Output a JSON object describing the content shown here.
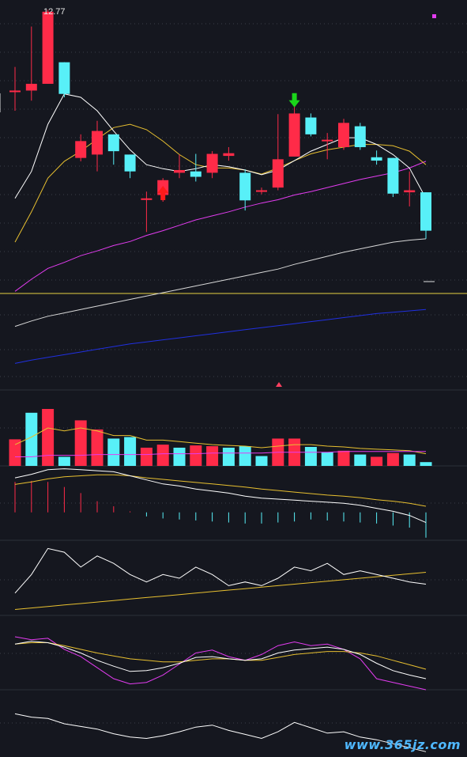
{
  "header": {
    "price_label": "12.77"
  },
  "watermark": {
    "text": "www.365jz.com"
  },
  "colors": {
    "background": "#15171f",
    "up": "#ff2b48",
    "down": "#58f0f8",
    "ma_white": "#ffffff",
    "ma_yellow": "#e8c030",
    "ma_magenta": "#e33cf0",
    "ma_grey": "#d8d8d8",
    "ma_blue": "#2030e0",
    "divider_yellow": "#e8d040",
    "grid": "#3a3f4a",
    "signal_up": "#ff1a1a",
    "signal_down": "#1ad61a"
  },
  "chart_data": [
    {
      "type": "candlestick",
      "name": "price",
      "ylim": [
        8.6,
        12.85
      ],
      "candles": [
        {
          "o": 11.6,
          "c": 11.6,
          "h": 11.95,
          "l": 11.3
        },
        {
          "o": 11.6,
          "c": 11.7,
          "h": 12.55,
          "l": 11.45
        },
        {
          "o": 11.7,
          "c": 12.77,
          "h": 12.8,
          "l": 11.7
        },
        {
          "o": 12.02,
          "c": 11.55,
          "h": 12.02,
          "l": 11.5
        },
        {
          "o": 10.6,
          "c": 10.85,
          "h": 10.95,
          "l": 10.55
        },
        {
          "o": 10.65,
          "c": 11.0,
          "h": 11.15,
          "l": 10.4
        },
        {
          "o": 10.95,
          "c": 10.7,
          "h": 10.95,
          "l": 10.5
        },
        {
          "o": 10.65,
          "c": 10.4,
          "h": 10.65,
          "l": 10.3
        },
        {
          "o": 10.0,
          "c": 10.0,
          "h": 10.1,
          "l": 9.5
        },
        {
          "o": 10.05,
          "c": 10.27,
          "h": 10.3,
          "l": 9.95
        },
        {
          "o": 10.38,
          "c": 10.42,
          "h": 10.65,
          "l": 10.3
        },
        {
          "o": 10.4,
          "c": 10.32,
          "h": 10.66,
          "l": 10.25
        },
        {
          "o": 10.38,
          "c": 10.66,
          "h": 10.7,
          "l": 10.3
        },
        {
          "o": 10.63,
          "c": 10.67,
          "h": 10.76,
          "l": 10.56
        },
        {
          "o": 10.38,
          "c": 9.97,
          "h": 10.43,
          "l": 9.82
        },
        {
          "o": 10.12,
          "c": 10.12,
          "h": 10.16,
          "l": 10.06
        },
        {
          "o": 10.16,
          "c": 10.58,
          "h": 11.25,
          "l": 10.12
        },
        {
          "o": 10.62,
          "c": 11.26,
          "h": 11.42,
          "l": 10.62
        },
        {
          "o": 11.2,
          "c": 10.95,
          "h": 11.26,
          "l": 10.92
        },
        {
          "o": 10.87,
          "c": 10.87,
          "h": 10.97,
          "l": 10.58
        },
        {
          "o": 10.76,
          "c": 11.12,
          "h": 11.18,
          "l": 10.72
        },
        {
          "o": 11.07,
          "c": 10.76,
          "h": 11.12,
          "l": 10.72
        },
        {
          "o": 10.61,
          "c": 10.56,
          "h": 10.71,
          "l": 10.5
        },
        {
          "o": 10.6,
          "c": 10.07,
          "h": 10.6,
          "l": 10.02
        },
        {
          "o": 10.09,
          "c": 10.12,
          "h": 10.4,
          "l": 9.88
        },
        {
          "o": 10.09,
          "c": 9.52,
          "h": 10.09,
          "l": 9.4
        }
      ],
      "ma_white": [
        10.0,
        10.4,
        11.1,
        11.55,
        11.5,
        11.3,
        11.0,
        10.72,
        10.5,
        10.44,
        10.4,
        10.44,
        10.5,
        10.47,
        10.42,
        10.35,
        10.42,
        10.56,
        10.7,
        10.8,
        10.9,
        10.9,
        10.8,
        10.65,
        10.45,
        10.0
      ],
      "ma_yellow": [
        9.35,
        9.8,
        10.3,
        10.55,
        10.7,
        10.88,
        11.05,
        11.1,
        11.02,
        10.85,
        10.65,
        10.5,
        10.45,
        10.45,
        10.42,
        10.36,
        10.45,
        10.56,
        10.66,
        10.72,
        10.76,
        10.8,
        10.8,
        10.78,
        10.7,
        10.5
      ],
      "ma_magenta": [
        8.62,
        8.8,
        8.96,
        9.05,
        9.15,
        9.22,
        9.3,
        9.36,
        9.45,
        9.52,
        9.6,
        9.68,
        9.74,
        9.8,
        9.87,
        9.93,
        9.98,
        10.05,
        10.1,
        10.16,
        10.22,
        10.28,
        10.33,
        10.38,
        10.45,
        10.55
      ],
      "ma_grey": [
        8.1,
        8.18,
        8.25,
        8.3,
        8.35,
        8.4,
        8.45,
        8.5,
        8.55,
        8.6,
        8.65,
        8.7,
        8.75,
        8.8,
        8.85,
        8.9,
        8.95,
        9.02,
        9.08,
        9.14,
        9.2,
        9.25,
        9.3,
        9.35,
        9.38,
        9.4
      ],
      "ma_blue": [
        7.55,
        7.6,
        7.64,
        7.68,
        7.72,
        7.76,
        7.8,
        7.84,
        7.87,
        7.9,
        7.93,
        7.96,
        7.99,
        8.02,
        8.05,
        8.08,
        8.11,
        8.14,
        8.17,
        8.2,
        8.23,
        8.26,
        8.29,
        8.31,
        8.33,
        8.35
      ],
      "signals": [
        {
          "index": 9,
          "kind": "buy"
        },
        {
          "index": 17,
          "kind": "sell"
        }
      ]
    },
    {
      "type": "bar",
      "name": "volume",
      "ylim": [
        0,
        100
      ],
      "values": [
        35,
        70,
        75,
        12,
        60,
        48,
        36,
        38,
        24,
        28,
        24,
        27,
        26,
        24,
        26,
        13,
        36,
        36,
        25,
        18,
        20,
        15,
        12,
        17,
        15,
        5
      ],
      "up": [
        true,
        false,
        true,
        false,
        true,
        true,
        false,
        false,
        true,
        true,
        false,
        true,
        true,
        false,
        false,
        false,
        true,
        true,
        false,
        false,
        true,
        false,
        true,
        true,
        false,
        false
      ],
      "ma_yellow": [
        28,
        38,
        50,
        46,
        50,
        46,
        40,
        40,
        34,
        34,
        32,
        30,
        28,
        27,
        26,
        24,
        26,
        28,
        28,
        26,
        25,
        23,
        22,
        21,
        20,
        16
      ],
      "ma_magenta": [
        12,
        12,
        14,
        14,
        14,
        15,
        15,
        15,
        15,
        16,
        16,
        16,
        17,
        17,
        17,
        17,
        18,
        18,
        18,
        18,
        19,
        19,
        19,
        19,
        19,
        19
      ]
    },
    {
      "type": "line",
      "name": "macd",
      "ylim": [
        -0.55,
        0.9
      ],
      "white": [
        0.68,
        0.75,
        0.84,
        0.86,
        0.84,
        0.82,
        0.8,
        0.72,
        0.64,
        0.56,
        0.52,
        0.46,
        0.42,
        0.38,
        0.32,
        0.28,
        0.26,
        0.24,
        0.22,
        0.2,
        0.18,
        0.14,
        0.08,
        0.02,
        -0.06,
        -0.2
      ],
      "yellow": [
        0.55,
        0.6,
        0.66,
        0.7,
        0.72,
        0.74,
        0.74,
        0.72,
        0.68,
        0.65,
        0.62,
        0.59,
        0.56,
        0.53,
        0.5,
        0.46,
        0.43,
        0.4,
        0.37,
        0.34,
        0.32,
        0.29,
        0.25,
        0.22,
        0.18,
        0.12
      ],
      "hist": [
        0.6,
        0.62,
        0.6,
        0.5,
        0.38,
        0.22,
        0.12,
        0.02,
        -0.08,
        -0.12,
        -0.14,
        -0.16,
        -0.18,
        -0.2,
        -0.22,
        -0.22,
        -0.2,
        -0.18,
        -0.14,
        -0.16,
        -0.18,
        -0.2,
        -0.22,
        -0.26,
        -0.3,
        -0.5
      ]
    },
    {
      "type": "line",
      "name": "oscillator-1",
      "ylim": [
        0,
        100
      ],
      "white": [
        30,
        55,
        90,
        85,
        65,
        80,
        70,
        55,
        45,
        55,
        50,
        65,
        55,
        40,
        45,
        40,
        50,
        65,
        60,
        70,
        55,
        60,
        55,
        50,
        45,
        42
      ],
      "yellow": [
        8,
        10,
        12,
        14,
        16,
        18,
        20,
        22,
        24,
        26,
        28,
        30,
        32,
        34,
        36,
        38,
        40,
        42,
        44,
        46,
        48,
        50,
        52,
        54,
        56,
        58
      ]
    },
    {
      "type": "line",
      "name": "oscillator-2",
      "ylim": [
        0,
        100
      ],
      "white": [
        62,
        66,
        64,
        58,
        50,
        40,
        32,
        25,
        26,
        30,
        36,
        44,
        45,
        42,
        40,
        42,
        50,
        54,
        56,
        58,
        55,
        48,
        36,
        26,
        20,
        15
      ],
      "yellow": [
        62,
        64,
        64,
        60,
        55,
        50,
        46,
        42,
        40,
        38,
        38,
        40,
        42,
        42,
        40,
        40,
        44,
        48,
        50,
        52,
        52,
        50,
        46,
        40,
        34,
        28
      ],
      "magenta": [
        72,
        68,
        70,
        55,
        45,
        30,
        15,
        8,
        10,
        20,
        35,
        50,
        54,
        45,
        40,
        48,
        60,
        65,
        60,
        62,
        55,
        42,
        15,
        10,
        5,
        0
      ]
    },
    {
      "type": "line",
      "name": "oscillator-3",
      "ylim": [
        0,
        100
      ],
      "white": [
        65,
        60,
        58,
        50,
        46,
        42,
        35,
        30,
        28,
        32,
        38,
        45,
        48,
        40,
        34,
        28,
        38,
        52,
        44,
        36,
        38,
        30,
        26,
        20,
        14,
        8
      ]
    }
  ]
}
